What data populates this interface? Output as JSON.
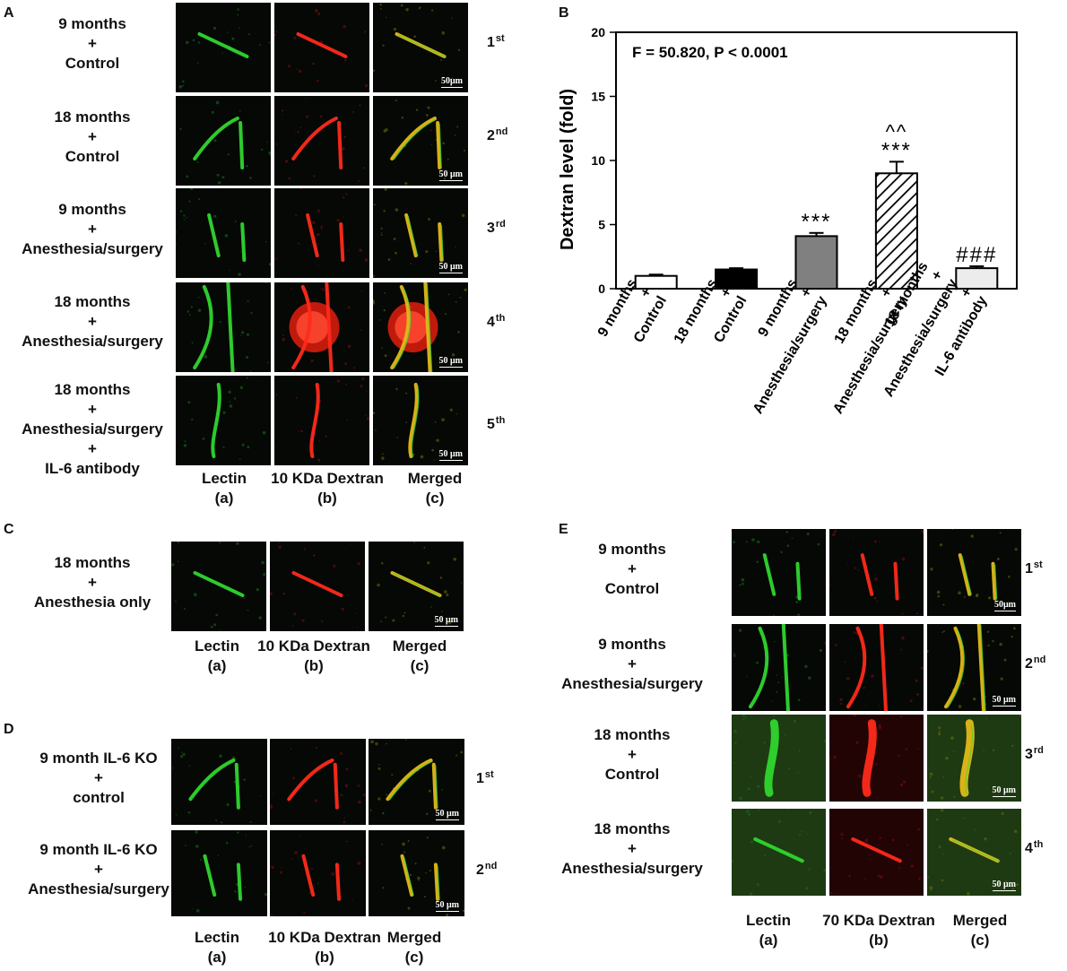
{
  "panels": {
    "A": {
      "label": "A",
      "rows": [
        {
          "label": [
            "9 months",
            "+",
            "Control"
          ],
          "ordinal": "1",
          "ordinal_sup": "st",
          "scalebar": "50μm"
        },
        {
          "label": [
            "18 months",
            "+",
            "Control"
          ],
          "ordinal": "2",
          "ordinal_sup": "nd",
          "scalebar": "50 μm"
        },
        {
          "label": [
            "9 months",
            "+",
            "Anesthesia/surgery"
          ],
          "ordinal": "3",
          "ordinal_sup": "rd",
          "scalebar": "50 μm"
        },
        {
          "label": [
            "18 months",
            "+",
            "Anesthesia/surgery"
          ],
          "ordinal": "4",
          "ordinal_sup": "th",
          "scalebar": "50 μm"
        },
        {
          "label": [
            "18 months",
            "+",
            "Anesthesia/surgery",
            "+",
            "IL-6 antibody"
          ],
          "ordinal": "5",
          "ordinal_sup": "th",
          "scalebar": "50 μm"
        }
      ],
      "columns": [
        {
          "name": "Lectin",
          "sub": "(a)"
        },
        {
          "name": "10 KDa Dextran",
          "sub": "(b)"
        },
        {
          "name": "Merged",
          "sub": "(c)"
        }
      ]
    },
    "B": {
      "label": "B",
      "annotation": "F = 50.820, P < 0.0001"
    },
    "C": {
      "label": "C",
      "rows": [
        {
          "label": [
            "18 months",
            "+",
            "Anesthesia only"
          ],
          "scalebar": "50 μm"
        }
      ],
      "columns": [
        {
          "name": "Lectin",
          "sub": "(a)"
        },
        {
          "name": "10 KDa Dextran",
          "sub": "(b)"
        },
        {
          "name": "Merged",
          "sub": "(c)"
        }
      ]
    },
    "D": {
      "label": "D",
      "rows": [
        {
          "label": [
            "9 month IL-6 KO",
            "+",
            "control"
          ],
          "ordinal": "1",
          "ordinal_sup": "st",
          "scalebar": "50 μm"
        },
        {
          "label": [
            "9 month IL-6 KO",
            "+",
            "Anesthesia/surgery"
          ],
          "ordinal": "2",
          "ordinal_sup": "nd",
          "scalebar": "50 μm"
        }
      ],
      "columns": [
        {
          "name": "Lectin",
          "sub": "(a)"
        },
        {
          "name": "10 KDa Dextran",
          "sub": "(b)"
        },
        {
          "name": "Merged",
          "sub": "(c)"
        }
      ]
    },
    "E": {
      "label": "E",
      "rows": [
        {
          "label": [
            "9 months",
            "+",
            "Control"
          ],
          "ordinal": "1",
          "ordinal_sup": "st",
          "scalebar": "50μm"
        },
        {
          "label": [
            "9 months",
            "+",
            "Anesthesia/surgery"
          ],
          "ordinal": "2",
          "ordinal_sup": "nd",
          "scalebar": "50 μm"
        },
        {
          "label": [
            "18 months",
            "+",
            "Control"
          ],
          "ordinal": "3",
          "ordinal_sup": "rd",
          "scalebar": "50 μm"
        },
        {
          "label": [
            "18 months",
            "+",
            "Anesthesia/surgery"
          ],
          "ordinal": "4",
          "ordinal_sup": "th",
          "scalebar": "50 μm"
        }
      ],
      "columns": [
        {
          "name": "Lectin",
          "sub": "(a)"
        },
        {
          "name": "70 KDa Dextran",
          "sub": "(b)"
        },
        {
          "name": "Merged",
          "sub": "(c)"
        }
      ]
    }
  },
  "chart_data": {
    "type": "bar",
    "categories": [
      [
        "9 months",
        "+",
        "Control"
      ],
      [
        "18 months",
        "+",
        "Control"
      ],
      [
        "9 months",
        "+",
        "Anesthesia/surgery"
      ],
      [
        "18 months",
        "+",
        "Anesthesia/surgery"
      ],
      [
        "18 months",
        "+",
        "Anesthesia/surgery",
        "+",
        "IL-6 antibody"
      ]
    ],
    "values": [
      1.0,
      1.5,
      4.1,
      9.0,
      1.6
    ],
    "errors": [
      0.1,
      0.1,
      0.25,
      0.9,
      0.15
    ],
    "fills": [
      "#ffffff",
      "#000000",
      "#808080",
      "hatch",
      "#ececec"
    ],
    "significance": [
      [
        "",
        ""
      ],
      [
        "",
        ""
      ],
      [
        "***",
        ""
      ],
      [
        "***",
        "^^"
      ],
      [
        "###",
        ""
      ]
    ],
    "ylabel": "Dextran level (fold)",
    "ylim": [
      0,
      20
    ],
    "yticks": [
      0,
      5,
      10,
      15,
      20
    ],
    "annotation": "F = 50.820, P < 0.0001",
    "grid": false
  }
}
